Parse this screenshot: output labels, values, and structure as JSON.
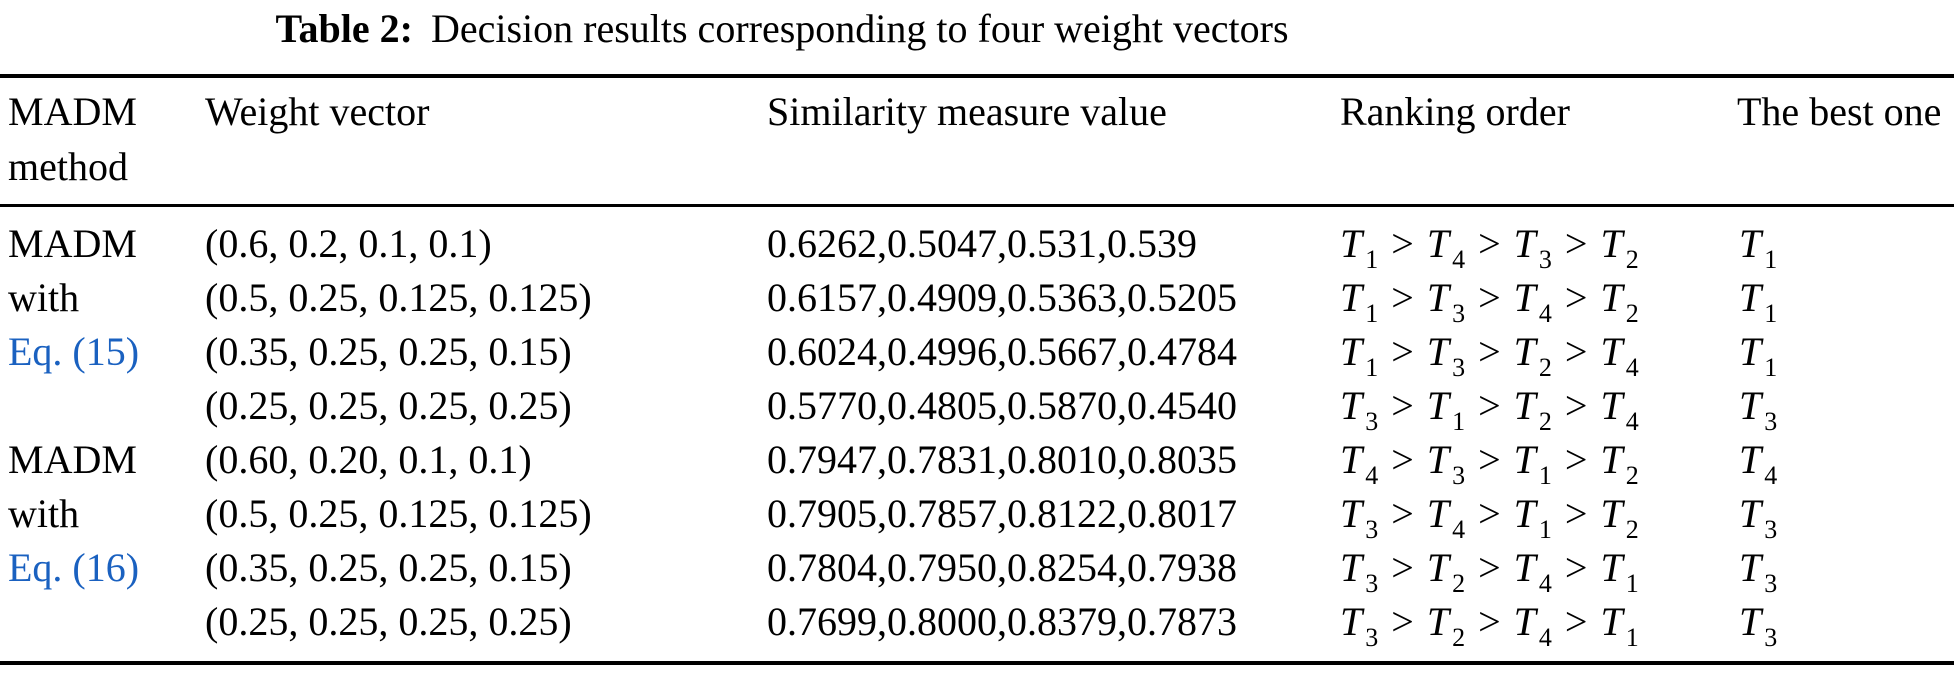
{
  "caption": {
    "label": "Table 2:",
    "text": "Decision results corresponding to four weight vectors"
  },
  "columns": [
    "MADM method",
    "Weight vector",
    "Similarity measure value",
    "Ranking order",
    "The best one"
  ],
  "link_color": "#1a61c0",
  "symbols": {
    "alternative": "T",
    "greater": ">"
  },
  "rows": [
    {
      "method": "MADM",
      "method_link": false,
      "weight": "(0.6, 0.2, 0.1, 0.1)",
      "similarity": "0.6262,0.5047,0.531,0.539",
      "ranking": [
        "1",
        "4",
        "3",
        "2"
      ],
      "best": "1"
    },
    {
      "method": "with",
      "method_link": false,
      "weight": "(0.5, 0.25, 0.125, 0.125)",
      "similarity": "0.6157,0.4909,0.5363,0.5205",
      "ranking": [
        "1",
        "3",
        "4",
        "2"
      ],
      "best": "1"
    },
    {
      "method": "Eq. (15)",
      "method_link": true,
      "weight": "(0.35, 0.25, 0.25, 0.15)",
      "similarity": "0.6024,0.4996,0.5667,0.4784",
      "ranking": [
        "1",
        "3",
        "2",
        "4"
      ],
      "best": "1"
    },
    {
      "method": "",
      "method_link": false,
      "weight": "(0.25, 0.25, 0.25, 0.25)",
      "similarity": "0.5770,0.4805,0.5870,0.4540",
      "ranking": [
        "3",
        "1",
        "2",
        "4"
      ],
      "best": "3"
    },
    {
      "method": "MADM",
      "method_link": false,
      "weight": "(0.60, 0.20, 0.1, 0.1)",
      "similarity": "0.7947,0.7831,0.8010,0.8035",
      "ranking": [
        "4",
        "3",
        "1",
        "2"
      ],
      "best": "4"
    },
    {
      "method": "with",
      "method_link": false,
      "weight": "(0.5, 0.25, 0.125, 0.125)",
      "similarity": "0.7905,0.7857,0.8122,0.8017",
      "ranking": [
        "3",
        "4",
        "1",
        "2"
      ],
      "best": "3"
    },
    {
      "method": "Eq. (16)",
      "method_link": true,
      "weight": "(0.35, 0.25, 0.25, 0.15)",
      "similarity": "0.7804,0.7950,0.8254,0.7938",
      "ranking": [
        "3",
        "2",
        "4",
        "1"
      ],
      "best": "3"
    },
    {
      "method": "",
      "method_link": false,
      "weight": "(0.25, 0.25, 0.25, 0.25)",
      "similarity": "0.7699,0.8000,0.8379,0.7873",
      "ranking": [
        "3",
        "2",
        "4",
        "1"
      ],
      "best": "3"
    }
  ]
}
